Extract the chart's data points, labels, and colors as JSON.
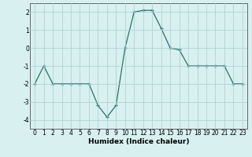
{
  "x": [
    0,
    1,
    2,
    3,
    4,
    5,
    6,
    7,
    8,
    9,
    10,
    11,
    12,
    13,
    14,
    15,
    16,
    17,
    18,
    19,
    20,
    21,
    22,
    23
  ],
  "y": [
    -2,
    -1,
    -2,
    -2,
    -2,
    -2,
    -2,
    -3.2,
    -3.85,
    -3.2,
    0,
    2,
    2.1,
    2.1,
    1.1,
    0,
    -0.1,
    -1,
    -1,
    -1,
    -1,
    -1,
    -2,
    -2
  ],
  "line_color": "#2d6e6e",
  "marker": "+",
  "marker_color": "#2d6e6e",
  "bg_color": "#d8f0f0",
  "grid_color": "#a8cece",
  "xlabel": "Humidex (Indice chaleur)",
  "xlim": [
    -0.5,
    23.5
  ],
  "ylim": [
    -4.5,
    2.5
  ],
  "xticks": [
    0,
    1,
    2,
    3,
    4,
    5,
    6,
    7,
    8,
    9,
    10,
    11,
    12,
    13,
    14,
    15,
    16,
    17,
    18,
    19,
    20,
    21,
    22,
    23
  ],
  "yticks": [
    -4,
    -3,
    -2,
    -1,
    0,
    1,
    2
  ],
  "xlabel_fontsize": 6.5,
  "tick_fontsize": 5.5,
  "linewidth": 0.9,
  "markersize": 3.0
}
